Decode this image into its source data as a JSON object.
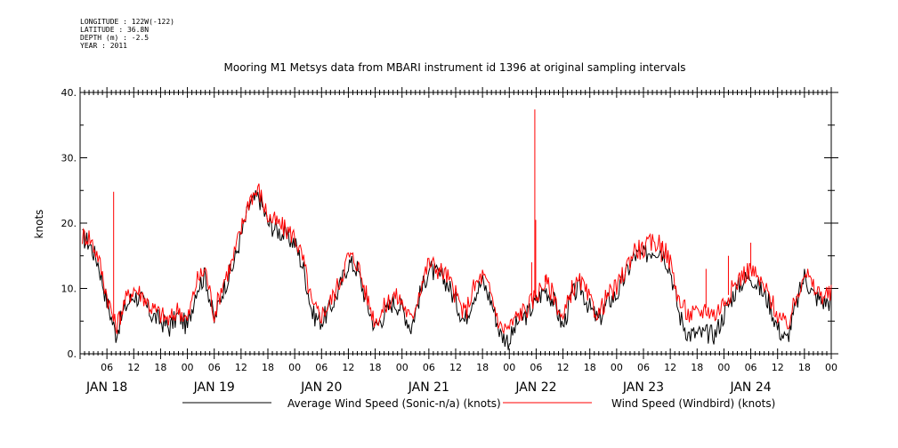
{
  "metadata": {
    "longitude": "LONGITUDE : 122W(-122)",
    "latitude": "LATITUDE : 36.8N",
    "depth": "DEPTH (m) : -2.5",
    "year": "YEAR : 2011"
  },
  "chart_data": {
    "type": "line",
    "title": "Mooring M1 Metsys data from MBARI instrument id 1396 at original sampling intervals",
    "ylabel": "knots",
    "xlabel": "",
    "ylim": [
      0,
      40
    ],
    "xlim_hours": [
      0,
      168
    ],
    "y_ticks": [
      "0.",
      "10.",
      "20.",
      "30.",
      "40."
    ],
    "x_hour_ticks": [
      "06",
      "12",
      "18",
      "00",
      "06",
      "12",
      "18",
      "00",
      "06",
      "12",
      "18",
      "00",
      "06",
      "12",
      "18",
      "00",
      "06",
      "12",
      "18",
      "00",
      "06",
      "12",
      "18",
      "00",
      "06",
      "12",
      "18",
      "00"
    ],
    "x_day_labels": [
      "JAN 18",
      "JAN 19",
      "JAN 20",
      "JAN 21",
      "JAN 22",
      "JAN 23",
      "JAN 24"
    ],
    "grid": false,
    "legend_position": "bottom",
    "series": [
      {
        "name": "Average Wind Speed (Sonic-n/a) (knots)",
        "color": "#000000",
        "x": [
          0,
          2,
          4,
          6,
          8,
          10,
          12,
          14,
          16,
          18,
          20,
          22,
          24,
          26,
          28,
          30,
          32,
          34,
          36,
          38,
          40,
          42,
          44,
          46,
          48,
          50,
          52,
          54,
          56,
          58,
          60,
          62,
          64,
          66,
          68,
          70,
          72,
          74,
          76,
          78,
          80,
          82,
          84,
          86,
          88,
          90,
          92,
          94,
          96,
          98,
          100,
          102,
          104,
          106,
          108,
          110,
          112,
          114,
          116,
          118,
          120,
          122,
          124,
          126,
          128,
          130,
          132,
          134,
          136,
          138,
          140,
          142,
          144,
          146,
          148,
          150,
          152,
          154,
          156,
          158,
          160,
          162,
          164,
          166,
          168
        ],
        "values": [
          18,
          17,
          14,
          8,
          3,
          7,
          9,
          8,
          6,
          5,
          4,
          6,
          4,
          10,
          12,
          5,
          10,
          13,
          18,
          23,
          24,
          20,
          19,
          18,
          17,
          13,
          6,
          5,
          7,
          10,
          14,
          13,
          8,
          4,
          6,
          8,
          7,
          4,
          9,
          13,
          12,
          11,
          8,
          5,
          9,
          11,
          8,
          3,
          2,
          5,
          6,
          8,
          10,
          8,
          4,
          9,
          10,
          7,
          5,
          8,
          9,
          12,
          15,
          15,
          16,
          16,
          13,
          6,
          3,
          3,
          3,
          3,
          6,
          9,
          11,
          12,
          10,
          8,
          4,
          2,
          7,
          12,
          9,
          8,
          8
        ]
      },
      {
        "name": "Wind Speed (Windbird) (knots)",
        "color": "#ff0000",
        "x": [
          0,
          2,
          4,
          6,
          8,
          10,
          12,
          14,
          16,
          18,
          20,
          22,
          24,
          26,
          28,
          30,
          32,
          34,
          36,
          38,
          40,
          42,
          44,
          46,
          48,
          50,
          52,
          54,
          56,
          58,
          60,
          62,
          64,
          66,
          68,
          70,
          72,
          74,
          76,
          78,
          80,
          82,
          84,
          86,
          88,
          90,
          92,
          94,
          96,
          98,
          100,
          102,
          104,
          106,
          108,
          110,
          112,
          114,
          116,
          118,
          120,
          122,
          124,
          126,
          128,
          130,
          132,
          134,
          136,
          138,
          140,
          142,
          144,
          146,
          148,
          150,
          152,
          154,
          156,
          158,
          160,
          162,
          164,
          166,
          168
        ],
        "values": [
          18,
          18,
          15,
          9,
          4,
          8,
          10,
          9,
          7,
          6,
          5,
          7,
          5,
          11,
          13,
          6,
          11,
          14,
          19,
          24,
          25,
          21,
          20,
          19,
          18,
          14,
          7,
          6,
          8,
          11,
          15,
          14,
          9,
          5,
          7,
          9,
          8,
          5,
          10,
          14,
          13,
          12,
          9,
          6,
          10,
          12,
          9,
          4,
          4,
          6,
          7,
          9,
          11,
          9,
          5,
          10,
          11,
          8,
          6,
          9,
          10,
          13,
          16,
          16,
          17,
          17,
          14,
          8,
          6,
          6,
          7,
          6,
          8,
          10,
          12,
          13,
          11,
          9,
          6,
          4,
          8,
          13,
          10,
          9,
          9
        ],
        "spikes": [
          [
            7.5,
            24.8
          ],
          [
            101.7,
            37.4
          ],
          [
            101.9,
            20.5
          ],
          [
            150,
            17
          ],
          [
            145,
            15
          ],
          [
            130,
            14
          ],
          [
            101,
            14
          ],
          [
            104,
            12
          ],
          [
            140,
            13
          ]
        ]
      }
    ]
  }
}
